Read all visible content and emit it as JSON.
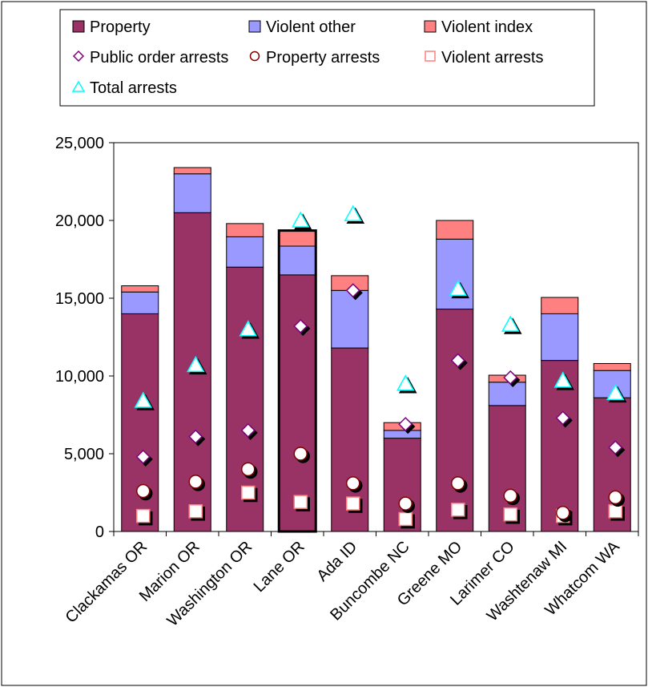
{
  "colors": {
    "property": "#993366",
    "violent_other": "#9999FF",
    "violent_index": "#FF8080",
    "public_order_marker": "#800080",
    "property_arrests_marker": "#800000",
    "violent_arrests_marker": "#FF8080",
    "total_arrests_marker": "#00FFFF"
  },
  "chart_data": {
    "type": "bar",
    "stacked": true,
    "categories": [
      "Clackamas OR",
      "Marion OR",
      "Washington OR",
      "Lane OR",
      "Ada ID",
      "Buncombe NC",
      "Greene MO",
      "Larimer CO",
      "Washtenaw MI",
      "Whatcom WA"
    ],
    "highlighted_category": "Lane OR",
    "series": [
      {
        "name": "Property",
        "kind": "bar",
        "values": [
          14000,
          20500,
          17000,
          16500,
          11800,
          6000,
          14300,
          8100,
          11000,
          8600
        ]
      },
      {
        "name": "Violent other",
        "kind": "bar",
        "values": [
          1400,
          2500,
          1950,
          1850,
          3700,
          500,
          4500,
          1500,
          3000,
          1750
        ]
      },
      {
        "name": "Violent index",
        "kind": "bar",
        "values": [
          400,
          400,
          850,
          1000,
          950,
          500,
          1200,
          450,
          1050,
          450
        ]
      },
      {
        "name": "Public order arrests",
        "kind": "marker",
        "marker": "diamond",
        "values": [
          4800,
          6100,
          6500,
          13200,
          15500,
          6900,
          11000,
          9900,
          7300,
          5400
        ]
      },
      {
        "name": "Property arrests",
        "kind": "marker",
        "marker": "circle",
        "values": [
          2600,
          3200,
          4000,
          5000,
          3100,
          1800,
          3100,
          2300,
          1200,
          2200
        ]
      },
      {
        "name": "Violent arrests",
        "kind": "marker",
        "marker": "square",
        "values": [
          1000,
          1300,
          2500,
          1900,
          1800,
          800,
          1400,
          1100,
          1000,
          1300
        ]
      },
      {
        "name": "Total arrests",
        "kind": "marker",
        "marker": "triangle",
        "values": [
          8400,
          10700,
          13000,
          20000,
          20400,
          9500,
          15600,
          13300,
          9700,
          8900
        ]
      }
    ],
    "y_ticks": [
      "0",
      "5,000",
      "10,000",
      "15,000",
      "20,000",
      "25,000"
    ],
    "ylim": [
      0,
      25000
    ],
    "grid": false,
    "legend_position": "top"
  }
}
